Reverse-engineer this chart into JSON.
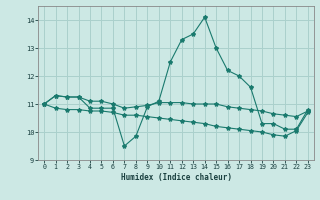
{
  "xlabel": "Humidex (Indice chaleur)",
  "ylabel": "",
  "bg_color": "#cce8e4",
  "grid_color": "#aad0cc",
  "line_color": "#1a7a6e",
  "xlim": [
    -0.5,
    23.5
  ],
  "ylim": [
    9.0,
    14.5
  ],
  "xticks": [
    0,
    1,
    2,
    3,
    4,
    5,
    6,
    7,
    8,
    9,
    10,
    11,
    12,
    13,
    14,
    15,
    16,
    17,
    18,
    19,
    20,
    21,
    22,
    23
  ],
  "yticks": [
    9,
    10,
    11,
    12,
    13,
    14
  ],
  "main_y": [
    11.0,
    11.3,
    11.25,
    11.25,
    10.85,
    10.85,
    10.85,
    9.5,
    9.85,
    10.9,
    11.1,
    12.5,
    13.3,
    13.5,
    14.1,
    13.0,
    12.2,
    12.0,
    11.6,
    10.3,
    10.3,
    10.1,
    10.1,
    10.8
  ],
  "upper_y": [
    11.0,
    11.3,
    11.25,
    11.25,
    11.1,
    11.1,
    11.0,
    10.85,
    10.9,
    10.95,
    11.05,
    11.05,
    11.05,
    11.0,
    11.0,
    11.0,
    10.9,
    10.85,
    10.8,
    10.75,
    10.65,
    10.6,
    10.55,
    10.75
  ],
  "lower_y": [
    11.0,
    10.85,
    10.8,
    10.8,
    10.75,
    10.75,
    10.7,
    10.6,
    10.6,
    10.55,
    10.5,
    10.45,
    10.4,
    10.35,
    10.3,
    10.2,
    10.15,
    10.1,
    10.05,
    10.0,
    9.9,
    9.85,
    10.05,
    10.7
  ]
}
